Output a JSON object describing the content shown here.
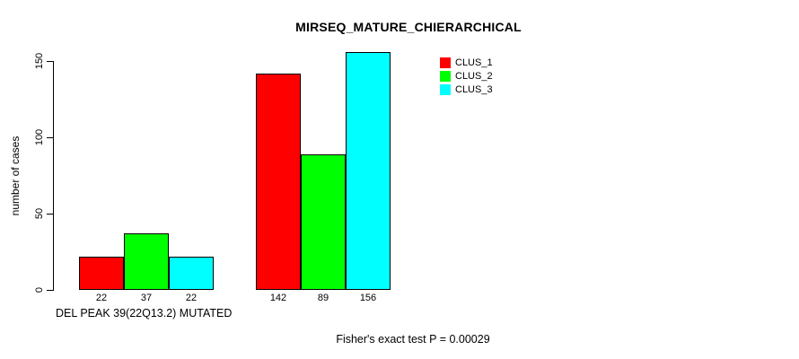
{
  "chart_data": {
    "type": "bar",
    "title": "MIRSEQ_MATURE_CHIERARCHICAL",
    "ylabel": "number of cases",
    "xlabel": "DEL PEAK 39(22Q13.2) MUTATED",
    "annotation": "Fisher's exact test P = 0.00029",
    "legend_position": "top-right",
    "legend": [
      {
        "label": "CLUS_1",
        "color": "#ff0000"
      },
      {
        "label": "CLUS_2",
        "color": "#00ff00"
      },
      {
        "label": "CLUS_3",
        "color": "#00ffff"
      }
    ],
    "yticks": [
      0,
      50,
      100,
      150
    ],
    "ylim": [
      0,
      160
    ],
    "grid": false,
    "series_names": [
      "CLUS_1",
      "CLUS_2",
      "CLUS_3"
    ],
    "groups": [
      {
        "values": [
          22,
          37,
          22
        ]
      },
      {
        "values": [
          142,
          89,
          156
        ]
      }
    ]
  },
  "colors": {
    "background": "#ffffff",
    "axis": "#000000",
    "text": "#000000",
    "bar_border": "#000000"
  }
}
